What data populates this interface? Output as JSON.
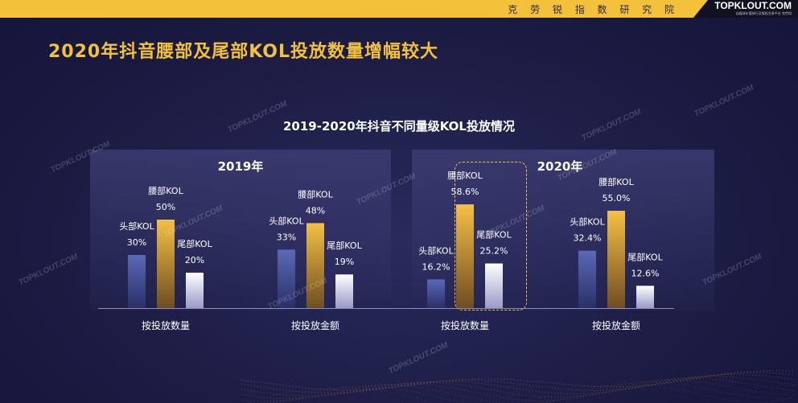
{
  "header": {
    "institute": "克 劳 锐 指 数 研 究 院",
    "logo": "TOPKLOUT.COM",
    "logo_sub": "自媒体价值排行及版权交易平台 克劳锐"
  },
  "page_title": "2020年抖音腰部及尾部KOL投放数量增幅较大",
  "watermark": "TOPKLOUT.COM",
  "chart_data": {
    "type": "bar",
    "title": "2019-2020年抖音不同量级KOL投放情况",
    "series_names": [
      "头部KOL",
      "腰部KOL",
      "尾部KOL"
    ],
    "colors": {
      "head": "#4a5aa0",
      "waist": "#f3b53a",
      "tail": "#ffffff",
      "accent": "#f3c13a"
    },
    "panels": [
      {
        "year": "2019年",
        "groups": [
          {
            "category": "按投放数量",
            "bars": [
              {
                "series": "头部KOL",
                "label": "30%",
                "value": 30
              },
              {
                "series": "腰部KOL",
                "label": "50%",
                "value": 50
              },
              {
                "series": "尾部KOL",
                "label": "20%",
                "value": 20
              }
            ]
          },
          {
            "category": "按投放金额",
            "bars": [
              {
                "series": "头部KOL",
                "label": "33%",
                "value": 33
              },
              {
                "series": "腰部KOL",
                "label": "48%",
                "value": 48
              },
              {
                "series": "尾部KOL",
                "label": "19%",
                "value": 19
              }
            ]
          }
        ]
      },
      {
        "year": "2020年",
        "groups": [
          {
            "category": "按投放数量",
            "highlighted": true,
            "bars": [
              {
                "series": "头部KOL",
                "label": "16.2%",
                "value": 16.2
              },
              {
                "series": "腰部KOL",
                "label": "58.6%",
                "value": 58.6
              },
              {
                "series": "尾部KOL",
                "label": "25.2%",
                "value": 25.2
              }
            ]
          },
          {
            "category": "按投放金额",
            "bars": [
              {
                "series": "头部KOL",
                "label": "32.4%",
                "value": 32.4
              },
              {
                "series": "腰部KOL",
                "label": "55.0%",
                "value": 55.0
              },
              {
                "series": "尾部KOL",
                "label": "12.6%",
                "value": 12.6
              }
            ]
          }
        ]
      }
    ]
  }
}
